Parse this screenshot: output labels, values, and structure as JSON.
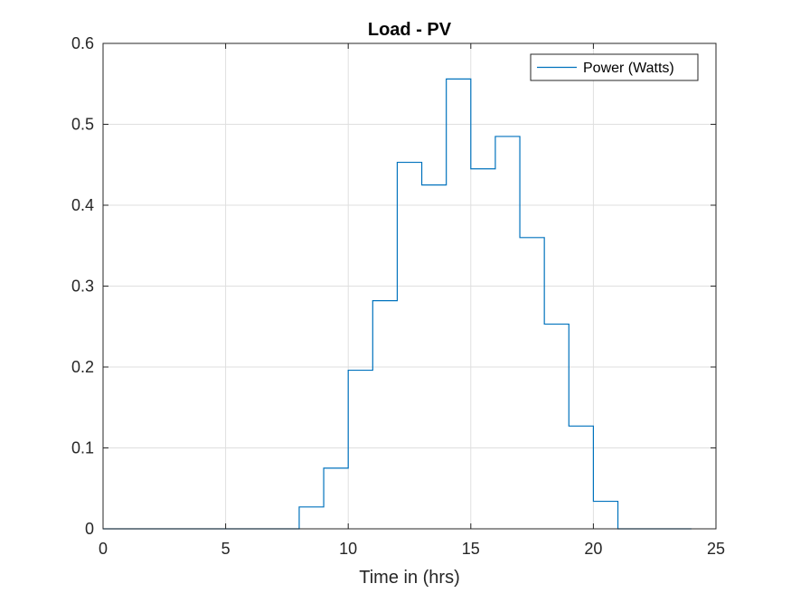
{
  "chart_data": {
    "type": "line",
    "step": true,
    "title": "Load - PV",
    "xlabel": "Time in (hrs)",
    "ylabel": "",
    "xlim": [
      0,
      25
    ],
    "ylim": [
      0,
      0.6
    ],
    "xticks": [
      0,
      5,
      10,
      15,
      20,
      25
    ],
    "yticks": [
      0,
      0.1,
      0.2,
      0.3,
      0.4,
      0.5,
      0.6
    ],
    "xtick_labels": [
      "0",
      "5",
      "10",
      "15",
      "20",
      "25"
    ],
    "ytick_labels": [
      "0",
      "0.1",
      "0.2",
      "0.3",
      "0.4",
      "0.5",
      "0.6"
    ],
    "grid": true,
    "legend_position": "top-right",
    "series": [
      {
        "name": "Power (Watts)",
        "color": "#0072bd",
        "x": [
          0,
          1,
          2,
          3,
          4,
          5,
          6,
          7,
          8,
          9,
          10,
          11,
          12,
          13,
          14,
          15,
          16,
          17,
          18,
          19,
          20,
          21,
          22,
          23,
          24
        ],
        "values": [
          0,
          0,
          0,
          0,
          0,
          0,
          0,
          0,
          0.027,
          0.075,
          0.196,
          0.282,
          0.453,
          0.425,
          0.556,
          0.445,
          0.485,
          0.36,
          0.253,
          0.127,
          0.034,
          0,
          0,
          0,
          0
        ]
      }
    ]
  }
}
